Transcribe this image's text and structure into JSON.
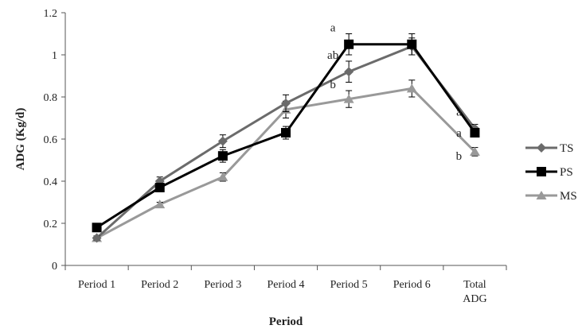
{
  "chart_data": {
    "type": "line",
    "categories": [
      "Period 1",
      "Period 2",
      "Period 3",
      "Period 4",
      "Period 5",
      "Period 6",
      "Total ADG"
    ],
    "xlabel": "Period",
    "ylabel": "ADG (Kg/d)",
    "ylim": [
      0,
      1.2
    ],
    "yticks": [
      "0",
      "0.2",
      "0.4",
      "0.6",
      "0.8",
      "1",
      "1.2"
    ],
    "grid": false,
    "legend_position": "right",
    "series": [
      {
        "name": "TS",
        "marker": "diamond",
        "color": "#6b6b6b",
        "values": [
          0.13,
          0.4,
          0.59,
          0.77,
          0.92,
          1.04,
          0.65
        ],
        "errors": [
          0.01,
          0.02,
          0.03,
          0.04,
          0.05,
          0.04,
          0.02
        ]
      },
      {
        "name": "PS",
        "marker": "square",
        "color": "#000000",
        "values": [
          0.18,
          0.37,
          0.52,
          0.63,
          1.05,
          1.05,
          0.63
        ],
        "errors": [
          0.01,
          0.02,
          0.03,
          0.03,
          0.05,
          0.05,
          0.02
        ]
      },
      {
        "name": "MS",
        "marker": "triangle",
        "color": "#999999",
        "values": [
          0.13,
          0.29,
          0.42,
          0.74,
          0.79,
          0.84,
          0.54
        ],
        "errors": [
          0.01,
          0.01,
          0.02,
          0.04,
          0.04,
          0.04,
          0.02
        ]
      }
    ],
    "annotations": [
      {
        "text": "a",
        "category": "Period 5",
        "y": 1.13
      },
      {
        "text": "ab",
        "category": "Period 5",
        "y": 1.0
      },
      {
        "text": "b",
        "category": "Period 5",
        "y": 0.86
      },
      {
        "text": "a",
        "category": "Total ADG",
        "y": 0.73
      },
      {
        "text": "a",
        "category": "Total ADG",
        "y": 0.63
      },
      {
        "text": "b",
        "category": "Total ADG",
        "y": 0.52
      }
    ]
  }
}
